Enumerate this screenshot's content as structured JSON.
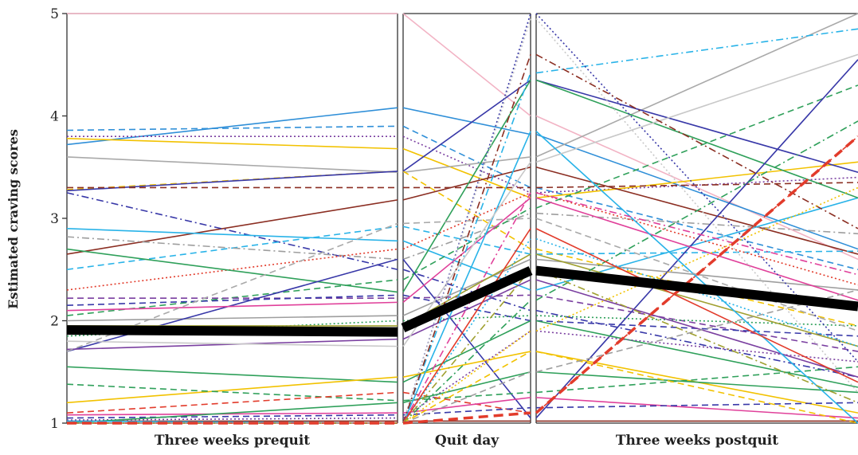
{
  "chart_data": {
    "type": "line",
    "ylabel": "Estimated craving scores",
    "ylim": [
      1,
      5
    ],
    "yticks": [
      1,
      2,
      3,
      4,
      5
    ],
    "grid": false,
    "legend": "none",
    "panels": [
      {
        "label": "Three weeks prequit"
      },
      {
        "label": "Quit day"
      },
      {
        "label": "Three weeks postquit"
      }
    ],
    "mean_series": {
      "color": "#000000",
      "values": [
        1.91,
        1.89,
        1.93,
        2.49,
        2.14
      ]
    },
    "series": [
      {
        "color": "#f2b3c4",
        "dash": "solid",
        "values": [
          5.0,
          5.0,
          5.0,
          4.0,
          2.6
        ]
      },
      {
        "color": "#2f8fd8",
        "dash": "solid",
        "values": [
          3.72,
          4.08,
          4.08,
          3.82,
          2.7
        ]
      },
      {
        "color": "#2f8fd8",
        "dash": "dashed",
        "values": [
          3.86,
          3.9,
          3.9,
          3.3,
          2.5
        ]
      },
      {
        "color": "#7a3fa0",
        "dash": "dotted",
        "values": [
          3.8,
          3.8,
          3.8,
          3.25,
          3.4
        ]
      },
      {
        "color": "#f2c200",
        "dash": "solid",
        "values": [
          3.78,
          3.68,
          3.68,
          3.2,
          3.55
        ]
      },
      {
        "color": "#a9a9a9",
        "dash": "solid",
        "values": [
          3.6,
          3.45,
          3.45,
          3.6,
          5.0
        ]
      },
      {
        "color": "#f2c200",
        "dash": "dashed",
        "values": [
          3.28,
          3.46,
          3.46,
          2.7,
          1.95
        ]
      },
      {
        "color": "#3838a8",
        "dash": "solid",
        "values": [
          3.27,
          3.46,
          3.46,
          4.35,
          3.45
        ]
      },
      {
        "color": "#8b2e22",
        "dash": "dashed",
        "values": [
          3.3,
          3.3,
          3.3,
          3.3,
          3.35
        ]
      },
      {
        "color": "#8b2e22",
        "dash": "solid",
        "values": [
          2.65,
          3.18,
          3.18,
          3.5,
          2.65
        ]
      },
      {
        "color": "#3838a8",
        "dash": "dashdot",
        "values": [
          3.25,
          2.5,
          2.5,
          2.1,
          1.45
        ]
      },
      {
        "color": "#29b3e8",
        "dash": "solid",
        "values": [
          2.9,
          2.78,
          2.78,
          2.3,
          3.2
        ]
      },
      {
        "color": "#29b3e8",
        "dash": "dashed",
        "values": [
          2.5,
          2.92,
          2.92,
          2.65,
          2.68
        ]
      },
      {
        "color": "#9e9e9e",
        "dash": "dashdot",
        "values": [
          2.82,
          2.6,
          2.6,
          3.05,
          2.85
        ]
      },
      {
        "color": "#e23b2b",
        "dash": "dotted",
        "values": [
          2.3,
          2.7,
          2.7,
          3.25,
          2.35
        ]
      },
      {
        "color": "#2fa05a",
        "dash": "solid",
        "values": [
          2.7,
          2.28,
          2.28,
          4.35,
          3.2
        ]
      },
      {
        "color": "#2fa05a",
        "dash": "dashed",
        "values": [
          2.05,
          2.4,
          2.4,
          3.1,
          4.3
        ]
      },
      {
        "color": "#7a3fa0",
        "dash": "dashed",
        "values": [
          2.22,
          2.22,
          2.22,
          2.25,
          1.7
        ]
      },
      {
        "color": "#3838a8",
        "dash": "dashed",
        "values": [
          2.15,
          2.25,
          2.25,
          2.0,
          1.85
        ]
      },
      {
        "color": "#9e9e9e",
        "dash": "solid",
        "values": [
          2.0,
          2.05,
          2.05,
          2.6,
          2.3
        ]
      },
      {
        "color": "#3838a8",
        "dash": "solid",
        "values": [
          1.7,
          2.6,
          2.6,
          1.05,
          4.55
        ]
      },
      {
        "color": "#e0409a",
        "dash": "solid",
        "values": [
          2.1,
          2.18,
          2.18,
          3.2,
          2.2
        ]
      },
      {
        "color": "#2fa05a",
        "dash": "dotted",
        "values": [
          1.85,
          2.0,
          2.0,
          2.05,
          1.95
        ]
      },
      {
        "color": "#a0a030",
        "dash": "solid",
        "values": [
          1.95,
          1.95,
          1.95,
          2.65,
          1.75
        ]
      },
      {
        "color": "#7a3fa0",
        "dash": "solid",
        "values": [
          1.72,
          1.82,
          1.82,
          2.4,
          1.45
        ]
      },
      {
        "color": "#2fa05a",
        "dash": "solid",
        "values": [
          1.55,
          1.4,
          1.4,
          2.0,
          1.35
        ]
      },
      {
        "color": "#f2c200",
        "dash": "solid",
        "values": [
          1.2,
          1.45,
          1.45,
          1.7,
          1.1
        ]
      },
      {
        "color": "#2fa05a",
        "dash": "dashed",
        "values": [
          1.38,
          1.22,
          1.22,
          1.3,
          1.55
        ]
      },
      {
        "color": "#e23b2b",
        "dash": "dashed",
        "values": [
          1.1,
          1.3,
          1.3,
          1.1,
          3.8
        ]
      },
      {
        "color": "#e0409a",
        "dash": "solid",
        "values": [
          1.08,
          1.1,
          1.1,
          1.25,
          1.05
        ]
      },
      {
        "color": "#3838a8",
        "dash": "dashed",
        "values": [
          1.05,
          1.08,
          1.08,
          1.15,
          1.2
        ]
      },
      {
        "color": "#8b2e22",
        "dash": "solid",
        "values": [
          1.02,
          1.02,
          1.02,
          1.02,
          1.02
        ]
      },
      {
        "color": "#7a3fa0",
        "dash": "dotted",
        "values": [
          1.03,
          1.05,
          1.05,
          1.9,
          1.6
        ]
      },
      {
        "color": "#2fa05a",
        "dash": "solid",
        "values": [
          1.0,
          1.2,
          1.2,
          1.5,
          1.3
        ]
      },
      {
        "color": "#29b3e8",
        "dash": "solid",
        "values": [
          1.02,
          1.0,
          1.0,
          3.85,
          1.0
        ]
      },
      {
        "color": "#f2c200",
        "dash": "dashed",
        "values": [
          1.0,
          1.0,
          1.0,
          1.7,
          1.0
        ]
      },
      {
        "color": "#a9a9a9",
        "dash": "dashed",
        "values": [
          1.7,
          2.95,
          2.95,
          3.0,
          1.9
        ]
      },
      {
        "color": "#29b3e8",
        "dash": "dashdot",
        "values": [
          1.0,
          1.0,
          1.0,
          4.42,
          4.85
        ]
      },
      {
        "color": "#c8c8c8",
        "dash": "solid",
        "values": [
          1.8,
          1.75,
          1.75,
          3.55,
          4.6
        ]
      },
      {
        "color": "#3838a8",
        "dash": "dotted",
        "values": [
          1.0,
          1.0,
          1.0,
          5.0,
          1.6
        ]
      },
      {
        "color": "#c8c8c8",
        "dash": "dotted",
        "values": [
          1.0,
          1.0,
          1.0,
          4.95,
          1.3
        ]
      },
      {
        "color": "#8b2e22",
        "dash": "dashdot",
        "values": [
          1.0,
          1.0,
          1.0,
          4.6,
          2.9
        ]
      },
      {
        "color": "#e0409a",
        "dash": "dashdot",
        "values": [
          1.0,
          1.0,
          1.0,
          3.25,
          2.45
        ]
      },
      {
        "color": "#29b3e8",
        "dash": "dotted",
        "values": [
          1.0,
          1.0,
          1.0,
          2.8,
          1.75
        ]
      },
      {
        "color": "#2fa05a",
        "dash": "dashdot",
        "values": [
          1.0,
          1.0,
          1.0,
          2.2,
          3.95
        ]
      },
      {
        "color": "#f2c200",
        "dash": "dotted",
        "values": [
          1.0,
          1.0,
          1.0,
          1.9,
          3.3
        ]
      },
      {
        "color": "#e23b2b",
        "dash": "solid",
        "values": [
          1.0,
          1.0,
          1.0,
          2.9,
          1.4
        ]
      },
      {
        "color": "#9e9e9e",
        "dash": "dashed",
        "values": [
          1.0,
          1.0,
          1.0,
          1.5,
          2.3
        ]
      },
      {
        "color": "#a0a030",
        "dash": "dashdot",
        "values": [
          1.0,
          1.0,
          1.0,
          2.5,
          1.2
        ]
      },
      {
        "color": "#e23b2b",
        "dash": "bold-dashed",
        "values": [
          1.0,
          1.0,
          1.0,
          1.1,
          3.8
        ]
      }
    ]
  }
}
